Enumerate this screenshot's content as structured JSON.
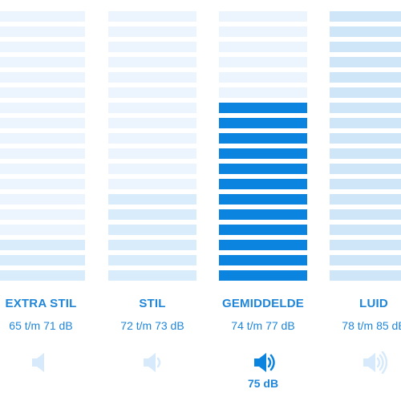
{
  "colors": {
    "accent": "#0b84e0",
    "level_faint": "#ecf5fd",
    "level_light": "#d8ecfb",
    "level_mid": "#cfe6f9",
    "text": "#1f86d9"
  },
  "columns": [
    {
      "label": "EXTRA STIL",
      "range": "65 t/m 71 dB",
      "icon": "speaker-mute-icon",
      "selected": false,
      "lit_bars": 3,
      "total_bars": 18,
      "value": ""
    },
    {
      "label": "STIL",
      "range": "72 t/m 73 dB",
      "icon": "speaker-low-icon",
      "selected": false,
      "lit_bars": 6,
      "total_bars": 18,
      "value": ""
    },
    {
      "label": "GEMIDDELDE",
      "range": "74 t/m 77 dB",
      "icon": "speaker-medium-icon",
      "selected": true,
      "lit_bars": 12,
      "total_bars": 18,
      "value": "75 dB"
    },
    {
      "label": "LUID",
      "range": "78 t/m 85 dB",
      "icon": "speaker-high-icon",
      "selected": false,
      "lit_bars": 18,
      "total_bars": 18,
      "value": ""
    }
  ]
}
